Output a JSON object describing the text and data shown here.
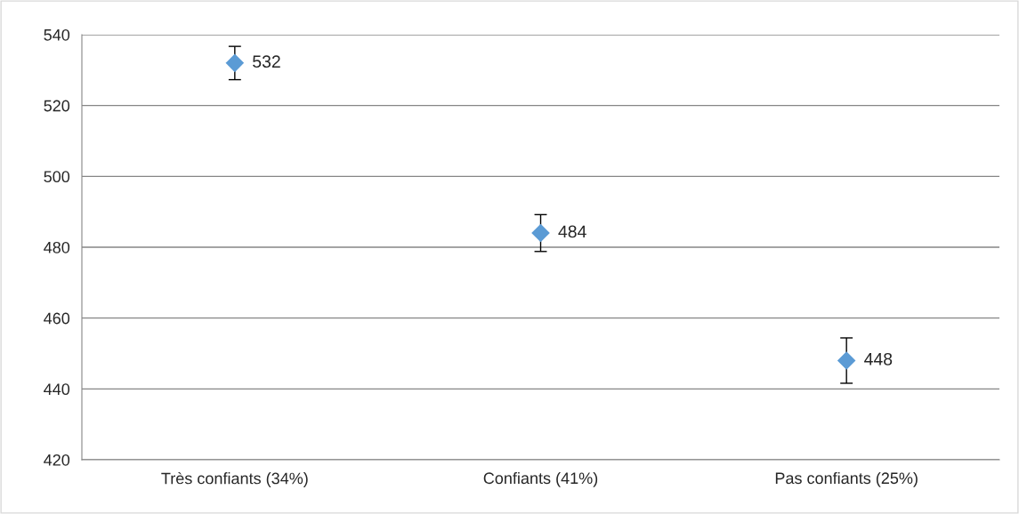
{
  "chart_data": {
    "type": "scatter",
    "categories": [
      "Très confiants (34%)",
      "Confiants (41%)",
      "Pas confiants (25%)"
    ],
    "series": [
      {
        "color": "#5b9bd5",
        "values": [
          532,
          484,
          448
        ],
        "errors": [
          4.7,
          5.2,
          6.4
        ]
      }
    ],
    "marker": "diamond",
    "data_labels": true,
    "ylim": [
      420,
      540
    ],
    "yticks": [
      420,
      440,
      460,
      480,
      500,
      520,
      540
    ],
    "grid": "y"
  }
}
